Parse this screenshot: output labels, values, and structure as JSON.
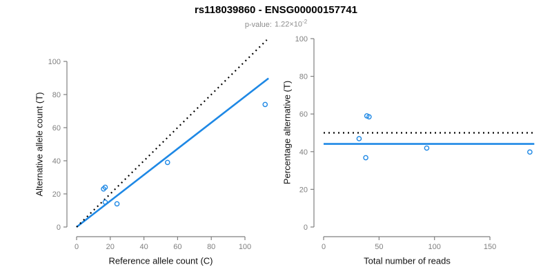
{
  "header": {
    "title": "rs118039860 - ENSG00000157741",
    "subtitle_label": "p-value:",
    "subtitle_value": "1.22×10",
    "subtitle_exponent": "-2"
  },
  "colors": {
    "accent_blue": "#1E88E5",
    "dotted_black": "#000000",
    "axis_gray": "#7f7f7f",
    "tick_label_gray": "#7f7f7f",
    "axis_title_black": "#111111",
    "subtitle_gray": "#8c8c8c",
    "background": "#ffffff"
  },
  "chart_data": [
    {
      "type": "scatter",
      "name": "allele-counts",
      "xlabel": "Reference allele count (C)",
      "ylabel": "Alternative allele count (T)",
      "xticks": [
        0,
        20,
        40,
        60,
        80,
        100
      ],
      "yticks": [
        0,
        20,
        40,
        60,
        80,
        100
      ],
      "xlim": [
        0,
        115
      ],
      "ylim": [
        0,
        115
      ],
      "grid": false,
      "legend": "none",
      "points": [
        [
          16,
          23
        ],
        [
          17,
          24
        ],
        [
          17,
          15
        ],
        [
          24,
          14
        ],
        [
          54,
          39
        ],
        [
          112,
          74
        ]
      ],
      "lines": [
        {
          "name": "fit-line",
          "style": "solid",
          "color": "#1E88E5",
          "slope": 0.7875,
          "x1": 0,
          "y1": 0,
          "x2": 114,
          "y2": 89.8
        },
        {
          "name": "identity-line",
          "style": "dotted",
          "color": "#000000",
          "slope": 1,
          "x1": 0,
          "y1": 0,
          "x2": 113,
          "y2": 113
        }
      ]
    },
    {
      "type": "scatter",
      "name": "percentage-vs-reads",
      "xlabel": "Total number of reads",
      "ylabel": "Percentage alternative (T)",
      "xticks": [
        0,
        50,
        100,
        150
      ],
      "yticks": [
        0,
        20,
        40,
        60,
        80,
        100
      ],
      "xlim": [
        0,
        190
      ],
      "ylim": [
        0,
        100
      ],
      "grid": false,
      "legend": "none",
      "points": [
        [
          39,
          59
        ],
        [
          41,
          58.5
        ],
        [
          32,
          46.9
        ],
        [
          38,
          36.8
        ],
        [
          93,
          41.9
        ],
        [
          186,
          39.8
        ]
      ],
      "lines": [
        {
          "name": "mean-percentage-line",
          "style": "solid",
          "color": "#1E88E5",
          "x1": 0,
          "y1": 44.1,
          "x2": 190,
          "y2": 44.1
        },
        {
          "name": "fifty-percent-line",
          "style": "dotted",
          "color": "#000000",
          "x1": 0,
          "y1": 50,
          "x2": 190,
          "y2": 50
        }
      ]
    }
  ]
}
